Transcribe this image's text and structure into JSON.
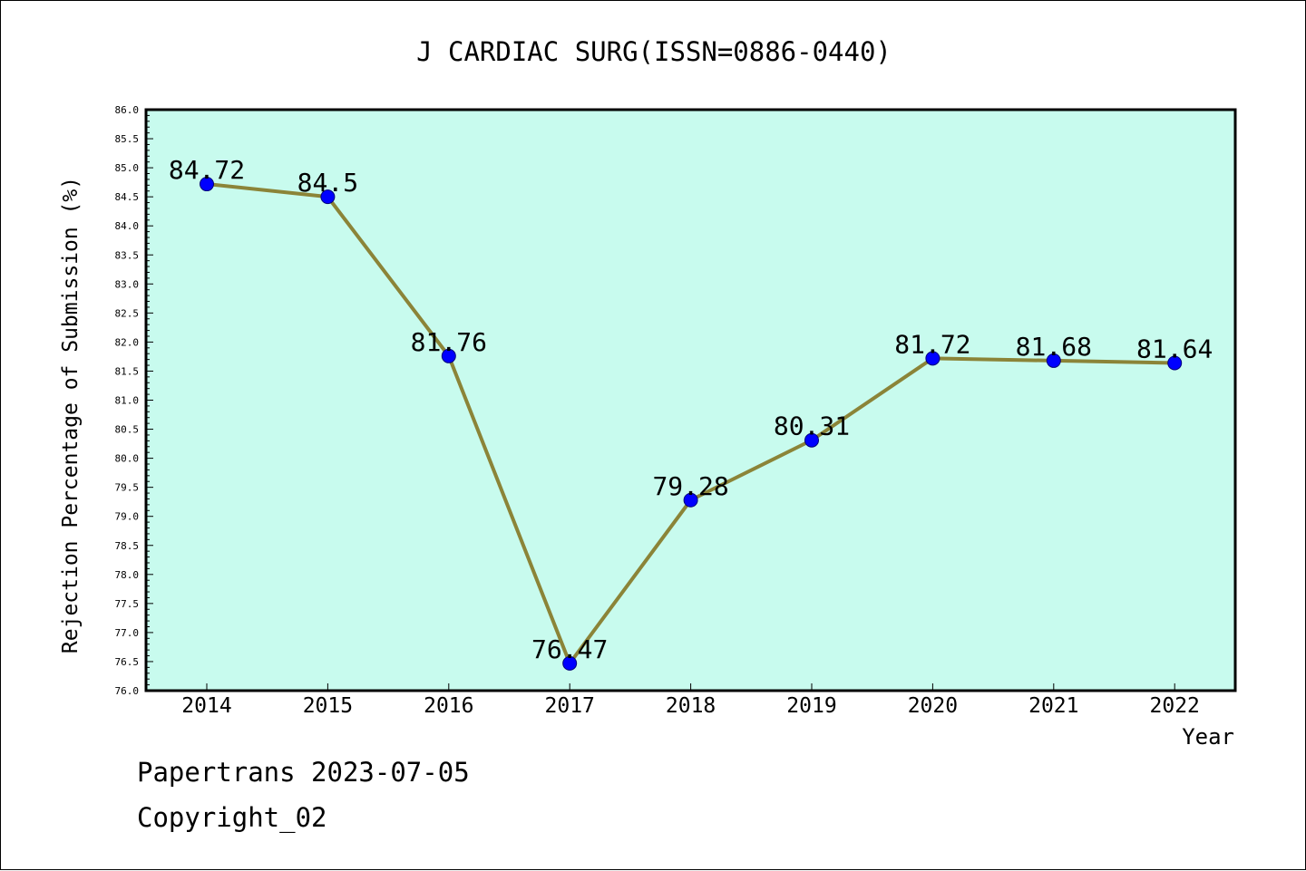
{
  "chart_data": {
    "type": "line",
    "title": "J CARDIAC SURG(ISSN=0886-0440)",
    "xlabel": "Year",
    "ylabel": "Rejection Percentage of Submission (%)",
    "ylim": [
      76.0,
      86.0
    ],
    "y_major_step": 0.5,
    "y_minor_step": 0.1,
    "grid": false,
    "categories": [
      "2014",
      "2015",
      "2016",
      "2017",
      "2018",
      "2019",
      "2020",
      "2021",
      "2022"
    ],
    "series": [
      {
        "values": [
          84.72,
          84.5,
          81.76,
          76.47,
          79.28,
          80.31,
          81.72,
          81.68,
          81.64
        ],
        "labels": [
          "84.72",
          "84.5",
          "81.76",
          "76.47",
          "79.28",
          "80.31",
          "81.72",
          "81.68",
          "81.64"
        ]
      }
    ],
    "colors": {
      "plot_background": "#c8fbee",
      "line": "#8b8438",
      "marker": "#0000ff"
    }
  },
  "footer": {
    "line1": "Papertrans 2023-07-05",
    "line2": "Copyright_02"
  }
}
